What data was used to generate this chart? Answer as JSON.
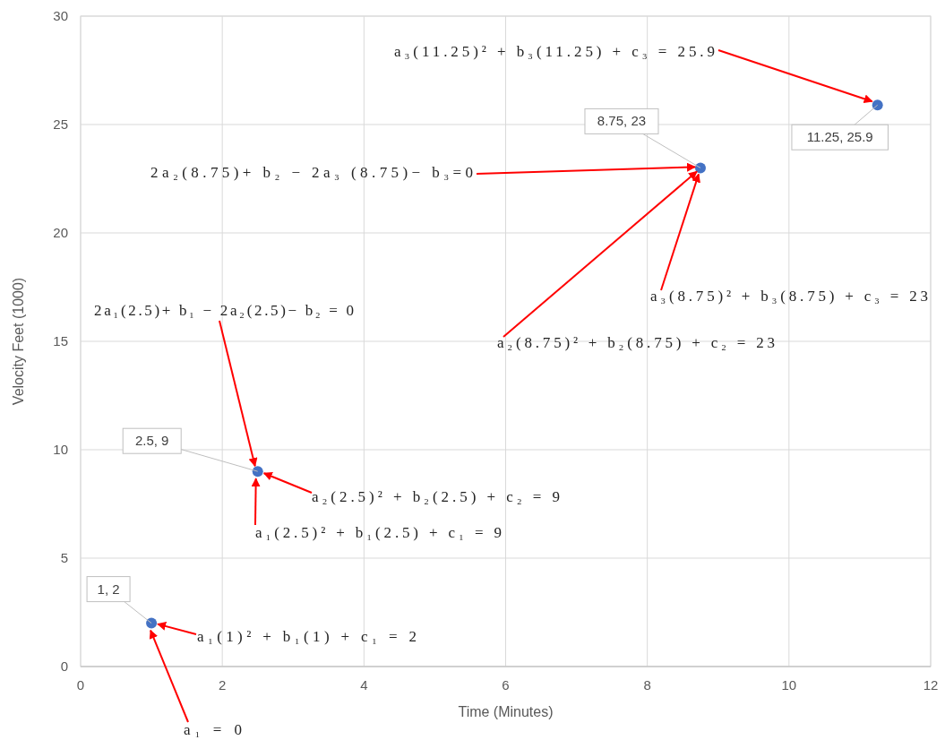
{
  "chart_data": {
    "type": "scatter",
    "xlabel": "Time (Minutes)",
    "ylabel": "Velocity Feet (1000)",
    "x": [
      1,
      2.5,
      8.75,
      11.25
    ],
    "series": [
      {
        "color": "#4472c4",
        "values": [
          2,
          9,
          23,
          25.9
        ]
      }
    ],
    "xlim": [
      0,
      12
    ],
    "xticks": [
      0,
      2,
      4,
      6,
      8,
      10,
      12
    ],
    "ylim": [
      0,
      30
    ],
    "yticks": [
      0,
      5,
      10,
      15,
      20,
      25,
      30
    ],
    "grid": true,
    "marker": "circle",
    "value_labels": [
      "1, 2",
      "2.5, 9",
      "8.75, 23",
      "11.25, 25.9"
    ],
    "annotations": [
      {
        "text": "a₃(11.25)² + b₃(11.25) +  c₃ = 25.9",
        "x": 11.25,
        "y": 25.9
      },
      {
        "text": "2a₂(8.75)+ b₂ − 2a₃ (8.75)− b₃=0",
        "x": 8.75,
        "y": 23
      },
      {
        "text": "a₃(8.75)² + b₃(8.75) +  c₃ = 23",
        "x": 8.75,
        "y": 23
      },
      {
        "text": "a₂(8.75)² + b₂(8.75) +  c₂ = 23",
        "x": 8.75,
        "y": 23
      },
      {
        "text": "2a₁(2.5)+ b₁ − 2a₂(2.5)− b₂ = 0",
        "x": 2.5,
        "y": 9
      },
      {
        "text": "a₂(2.5)² + b₂(2.5) +  c₂ = 9",
        "x": 2.5,
        "y": 9
      },
      {
        "text": "a₁(2.5)² + b₁(2.5) +  c₁ = 9",
        "x": 2.5,
        "y": 9
      },
      {
        "text": "a₁(1)² + b₁(1) +  c₁ = 2",
        "x": 1,
        "y": 2
      },
      {
        "text": "a₁ = 0",
        "x": 1,
        "y": 2
      }
    ]
  }
}
